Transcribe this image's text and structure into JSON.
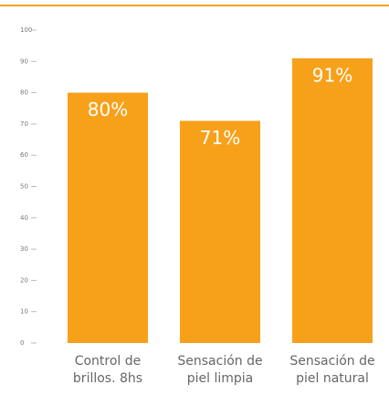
{
  "chart_data": {
    "type": "bar",
    "categories": [
      [
        "Control de",
        "brillos. 8hs"
      ],
      [
        "Sensación de",
        "piel limpia"
      ],
      [
        "Sensación de",
        "piel natural"
      ]
    ],
    "values": [
      80,
      71,
      91
    ],
    "value_labels": [
      "80%",
      "71%",
      "91%"
    ],
    "color": "#f7a11b",
    "ylim": [
      0,
      100
    ],
    "yticks": [
      0,
      10,
      20,
      30,
      40,
      50,
      60,
      70,
      80,
      90,
      100
    ]
  }
}
